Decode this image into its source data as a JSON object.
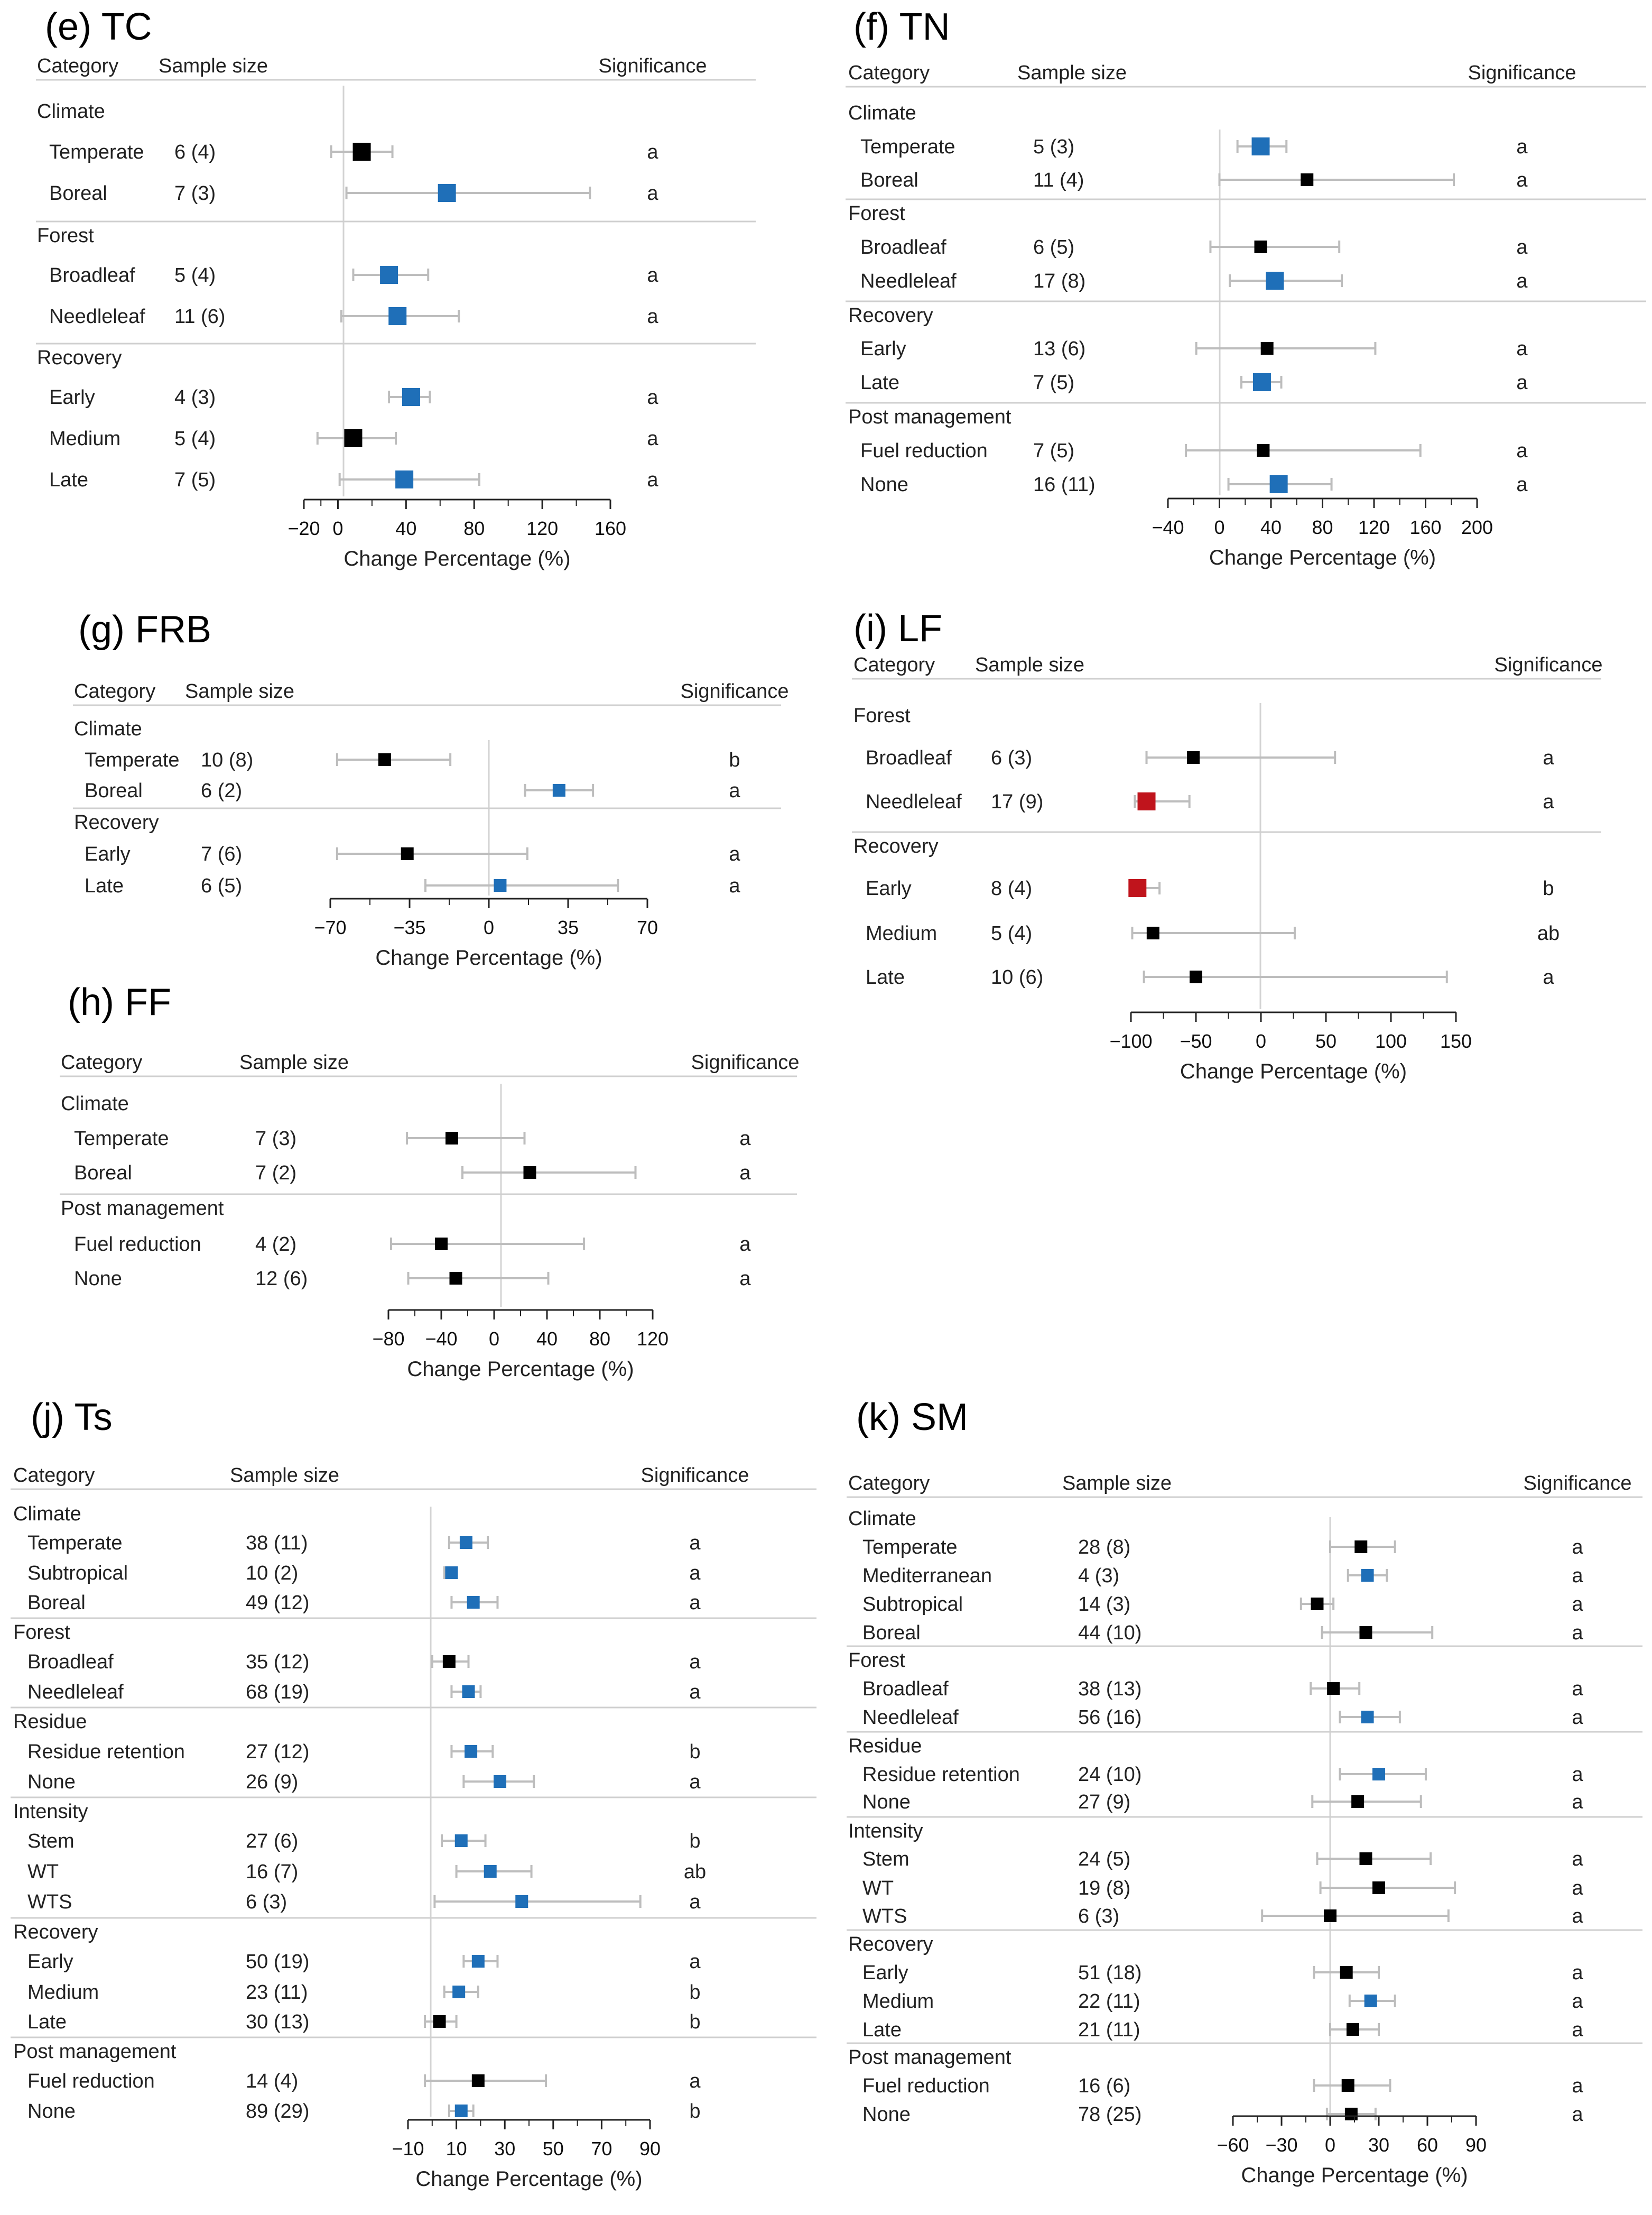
{
  "header_labels": {
    "category": "Category",
    "sample_size": "Sample size",
    "significance": "Significance"
  },
  "colors": {
    "black": "#000000",
    "blue": "#1f6fb8",
    "red": "#c0141c",
    "whisker": "#bdbdbd",
    "ref_line": "#d3d3d3"
  },
  "chart_data": [
    {
      "id": "TC",
      "type": "forest",
      "title": "(e) TC",
      "xlabel": "Change Percentage (%)",
      "xticks": [
        -20,
        0,
        40,
        80,
        120,
        160
      ],
      "xlim": [
        -20,
        160
      ],
      "groups": [
        {
          "name": "Climate",
          "rows": [
            {
              "label": "Temperate",
              "n": "6 (4)",
              "est": 14,
              "lo": -4,
              "hi": 32,
              "color": "black",
              "size": "big",
              "sig": "a"
            },
            {
              "label": "Boreal",
              "n": "7 (3)",
              "est": 64,
              "lo": 5,
              "hi": 148,
              "color": "blue",
              "size": "big",
              "sig": "a"
            }
          ]
        },
        {
          "name": "Forest",
          "rows": [
            {
              "label": "Broadleaf",
              "n": "5 (4)",
              "est": 30,
              "lo": 9,
              "hi": 53,
              "color": "blue",
              "size": "big",
              "sig": "a"
            },
            {
              "label": "Needleleaf",
              "n": "11 (6)",
              "est": 35,
              "lo": 2,
              "hi": 71,
              "color": "blue",
              "size": "big",
              "sig": "a"
            }
          ]
        },
        {
          "name": "Recovery",
          "rows": [
            {
              "label": "Early",
              "n": "4 (3)",
              "est": 43,
              "lo": 30,
              "hi": 54,
              "color": "blue",
              "size": "big",
              "sig": "a"
            },
            {
              "label": "Medium",
              "n": "5 (4)",
              "est": 9,
              "lo": -12,
              "hi": 34,
              "color": "black",
              "size": "big",
              "sig": "a"
            },
            {
              "label": "Late",
              "n": "7 (5)",
              "est": 39,
              "lo": 1,
              "hi": 83,
              "color": "blue",
              "size": "big",
              "sig": "a"
            }
          ]
        }
      ]
    },
    {
      "id": "TN",
      "type": "forest",
      "title": "(f) TN",
      "xlabel": "Change Percentage (%)",
      "xticks": [
        -40,
        0,
        40,
        80,
        120,
        160,
        200
      ],
      "xlim": [
        -40,
        200
      ],
      "groups": [
        {
          "name": "Climate",
          "rows": [
            {
              "label": "Temperate",
              "n": "5 (3)",
              "est": 32,
              "lo": 14,
              "hi": 52,
              "color": "blue",
              "size": "big",
              "sig": "a"
            },
            {
              "label": "Boreal",
              "n": "11 (4)",
              "est": 68,
              "lo": 0,
              "hi": 182,
              "color": "black",
              "size": "small",
              "sig": "a"
            }
          ]
        },
        {
          "name": "Forest",
          "rows": [
            {
              "label": "Broadleaf",
              "n": "6 (5)",
              "est": 32,
              "lo": -7,
              "hi": 93,
              "color": "black",
              "size": "small",
              "sig": "a"
            },
            {
              "label": "Needleleaf",
              "n": "17 (8)",
              "est": 43,
              "lo": 8,
              "hi": 95,
              "color": "blue",
              "size": "big",
              "sig": "a"
            }
          ]
        },
        {
          "name": "Recovery",
          "rows": [
            {
              "label": "Early",
              "n": "13 (6)",
              "est": 37,
              "lo": -18,
              "hi": 121,
              "color": "black",
              "size": "small",
              "sig": "a"
            },
            {
              "label": "Late",
              "n": "7 (5)",
              "est": 33,
              "lo": 17,
              "hi": 48,
              "color": "blue",
              "size": "big",
              "sig": "a"
            }
          ]
        },
        {
          "name": "Post management",
          "rows": [
            {
              "label": "Fuel reduction",
              "n": "7 (5)",
              "est": 34,
              "lo": -26,
              "hi": 156,
              "color": "black",
              "size": "small",
              "sig": "a"
            },
            {
              "label": "None",
              "n": "16 (11)",
              "est": 46,
              "lo": 7,
              "hi": 87,
              "color": "blue",
              "size": "big",
              "sig": "a"
            }
          ]
        }
      ]
    },
    {
      "id": "FRB",
      "type": "forest",
      "title": "(g) FRB",
      "xlabel": "Change Percentage (%)",
      "xticks": [
        -70,
        -35,
        0,
        35,
        70
      ],
      "xlim": [
        -70,
        70
      ],
      "groups": [
        {
          "name": "Climate",
          "rows": [
            {
              "label": "Temperate",
              "n": "10 (8)",
              "est": -46,
              "lo": -67,
              "hi": -17,
              "color": "black",
              "size": "small",
              "sig": "b"
            },
            {
              "label": "Boreal",
              "n": "6 (2)",
              "est": 31,
              "lo": 16,
              "hi": 46,
              "color": "blue",
              "size": "small",
              "sig": "a"
            }
          ]
        },
        {
          "name": "Recovery",
          "rows": [
            {
              "label": "Early",
              "n": "7 (6)",
              "est": -36,
              "lo": -67,
              "hi": 17,
              "color": "black",
              "size": "small",
              "sig": "a"
            },
            {
              "label": "Late",
              "n": "6 (5)",
              "est": 5,
              "lo": -28,
              "hi": 57,
              "color": "blue",
              "size": "small",
              "sig": "a"
            }
          ]
        }
      ]
    },
    {
      "id": "FF",
      "type": "forest",
      "title": "(h) FF",
      "xlabel": "Change Percentage (%)",
      "xticks": [
        -80,
        -40,
        0,
        40,
        80,
        120
      ],
      "xlim": [
        -80,
        120
      ],
      "groups": [
        {
          "name": "Climate",
          "rows": [
            {
              "label": "Temperate",
              "n": "7 (3)",
              "est": -32,
              "lo": -66,
              "hi": 23,
              "color": "black",
              "size": "small",
              "sig": "a"
            },
            {
              "label": "Boreal",
              "n": "7 (2)",
              "est": 27,
              "lo": -24,
              "hi": 107,
              "color": "black",
              "size": "small",
              "sig": "a"
            }
          ]
        },
        {
          "name": "Post management",
          "rows": [
            {
              "label": "Fuel reduction",
              "n": "4 (2)",
              "est": -40,
              "lo": -78,
              "hi": 68,
              "color": "black",
              "size": "small",
              "sig": "a"
            },
            {
              "label": "None",
              "n": "12 (6)",
              "est": -29,
              "lo": -65,
              "hi": 41,
              "color": "black",
              "size": "small",
              "sig": "a"
            }
          ]
        }
      ]
    },
    {
      "id": "LF",
      "type": "forest",
      "title": "(i) LF",
      "xlabel": "Change Percentage (%)",
      "xticks": [
        -100,
        -50,
        0,
        50,
        100,
        150
      ],
      "xlim": [
        -100,
        150
      ],
      "groups": [
        {
          "name": "Forest",
          "rows": [
            {
              "label": "Broadleaf",
              "n": "6 (3)",
              "est": -52,
              "lo": -88,
              "hi": 57,
              "color": "black",
              "size": "small",
              "sig": "a"
            },
            {
              "label": "Needleleaf",
              "n": "17 (9)",
              "est": -88,
              "lo": -97,
              "hi": -55,
              "color": "red",
              "size": "big",
              "sig": "a"
            }
          ]
        },
        {
          "name": "Recovery",
          "rows": [
            {
              "label": "Early",
              "n": "8 (4)",
              "est": -95,
              "lo": -100,
              "hi": -78,
              "color": "red",
              "size": "big",
              "sig": "b"
            },
            {
              "label": "Medium",
              "n": "5 (4)",
              "est": -83,
              "lo": -99,
              "hi": 26,
              "color": "black",
              "size": "small",
              "sig": "ab"
            },
            {
              "label": "Late",
              "n": "10 (6)",
              "est": -50,
              "lo": -90,
              "hi": 143,
              "color": "black",
              "size": "small",
              "sig": "a"
            }
          ]
        }
      ]
    },
    {
      "id": "Ts",
      "type": "forest",
      "title": "(j) Ts",
      "xlabel": "Change Percentage (%)",
      "xticks": [
        -10,
        10,
        30,
        50,
        70,
        90
      ],
      "xlim": [
        -10,
        90
      ],
      "groups": [
        {
          "name": "Climate",
          "rows": [
            {
              "label": "Temperate",
              "n": "38 (11)",
              "est": 14,
              "lo": 7,
              "hi": 23,
              "color": "blue",
              "size": "small",
              "sig": "a"
            },
            {
              "label": "Subtropical",
              "n": "10 (2)",
              "est": 8,
              "lo": 5,
              "hi": 10,
              "color": "blue",
              "size": "small",
              "sig": "a"
            },
            {
              "label": "Boreal",
              "n": "49 (12)",
              "est": 17,
              "lo": 8,
              "hi": 27,
              "color": "blue",
              "size": "small",
              "sig": "a"
            }
          ]
        },
        {
          "name": "Forest",
          "rows": [
            {
              "label": "Broadleaf",
              "n": "35 (12)",
              "est": 7,
              "lo": 0,
              "hi": 15,
              "color": "black",
              "size": "small",
              "sig": "a"
            },
            {
              "label": "Needleleaf",
              "n": "68 (19)",
              "est": 15,
              "lo": 8,
              "hi": 20,
              "color": "blue",
              "size": "small",
              "sig": "a"
            }
          ]
        },
        {
          "name": "Residue",
          "rows": [
            {
              "label": "Residue retention",
              "n": "27 (12)",
              "est": 16,
              "lo": 8,
              "hi": 25,
              "color": "blue",
              "size": "small",
              "sig": "b"
            },
            {
              "label": "None",
              "n": "26 (9)",
              "est": 28,
              "lo": 13,
              "hi": 42,
              "color": "blue",
              "size": "small",
              "sig": "a"
            }
          ]
        },
        {
          "name": "Intensity",
          "rows": [
            {
              "label": "Stem",
              "n": "27 (6)",
              "est": 12,
              "lo": 4,
              "hi": 22,
              "color": "blue",
              "size": "small",
              "sig": "b"
            },
            {
              "label": "WT",
              "n": "16 (7)",
              "est": 24,
              "lo": 10,
              "hi": 41,
              "color": "blue",
              "size": "small",
              "sig": "ab"
            },
            {
              "label": "WTS",
              "n": "6 (3)",
              "est": 37,
              "lo": 1,
              "hi": 86,
              "color": "blue",
              "size": "small",
              "sig": "a"
            }
          ]
        },
        {
          "name": "Recovery",
          "rows": [
            {
              "label": "Early",
              "n": "50 (19)",
              "est": 19,
              "lo": 13,
              "hi": 27,
              "color": "blue",
              "size": "small",
              "sig": "a"
            },
            {
              "label": "Medium",
              "n": "23 (11)",
              "est": 11,
              "lo": 5,
              "hi": 19,
              "color": "blue",
              "size": "small",
              "sig": "b"
            },
            {
              "label": "Late",
              "n": "30 (13)",
              "est": 3,
              "lo": -3,
              "hi": 10,
              "color": "black",
              "size": "small",
              "sig": "b"
            }
          ]
        },
        {
          "name": "Post management",
          "rows": [
            {
              "label": "Fuel reduction",
              "n": "14 (4)",
              "est": 19,
              "lo": -3,
              "hi": 47,
              "color": "black",
              "size": "small",
              "sig": "a"
            },
            {
              "label": "None",
              "n": "89 (29)",
              "est": 12,
              "lo": 7,
              "hi": 17,
              "color": "blue",
              "size": "small",
              "sig": "b"
            }
          ]
        }
      ]
    },
    {
      "id": "SM",
      "type": "forest",
      "title": "(k) SM",
      "xlabel": "Change Percentage (%)",
      "xticks": [
        -60,
        -30,
        0,
        30,
        60,
        90
      ],
      "xlim": [
        -60,
        90
      ],
      "groups": [
        {
          "name": "Climate",
          "rows": [
            {
              "label": "Temperate",
              "n": "28 (8)",
              "est": 19,
              "lo": 0,
              "hi": 40,
              "color": "black",
              "size": "small",
              "sig": "a"
            },
            {
              "label": "Mediterranean",
              "n": "4 (3)",
              "est": 23,
              "lo": 11,
              "hi": 35,
              "color": "blue",
              "size": "small",
              "sig": "a"
            },
            {
              "label": "Subtropical",
              "n": "14 (3)",
              "est": -8,
              "lo": -18,
              "hi": 2,
              "color": "black",
              "size": "small",
              "sig": "a"
            },
            {
              "label": "Boreal",
              "n": "44 (10)",
              "est": 22,
              "lo": -5,
              "hi": 63,
              "color": "black",
              "size": "small",
              "sig": "a"
            }
          ]
        },
        {
          "name": "Forest",
          "rows": [
            {
              "label": "Broadleaf",
              "n": "38 (13)",
              "est": 2,
              "lo": -12,
              "hi": 18,
              "color": "black",
              "size": "small",
              "sig": "a"
            },
            {
              "label": "Needleleaf",
              "n": "56 (16)",
              "est": 23,
              "lo": 6,
              "hi": 43,
              "color": "blue",
              "size": "small",
              "sig": "a"
            }
          ]
        },
        {
          "name": "Residue",
          "rows": [
            {
              "label": "Residue retention",
              "n": "24 (10)",
              "est": 30,
              "lo": 6,
              "hi": 59,
              "color": "blue",
              "size": "small",
              "sig": "a"
            },
            {
              "label": "None",
              "n": "27 (9)",
              "est": 17,
              "lo": -11,
              "hi": 56,
              "color": "black",
              "size": "small",
              "sig": "a"
            }
          ]
        },
        {
          "name": "Intensity",
          "rows": [
            {
              "label": "Stem",
              "n": "24 (5)",
              "est": 22,
              "lo": -8,
              "hi": 62,
              "color": "black",
              "size": "small",
              "sig": "a"
            },
            {
              "label": "WT",
              "n": "19 (8)",
              "est": 30,
              "lo": -6,
              "hi": 77,
              "color": "black",
              "size": "small",
              "sig": "a"
            },
            {
              "label": "WTS",
              "n": "6 (3)",
              "est": 0,
              "lo": -42,
              "hi": 73,
              "color": "black",
              "size": "small",
              "sig": "a"
            }
          ]
        },
        {
          "name": "Recovery",
          "rows": [
            {
              "label": "Early",
              "n": "51 (18)",
              "est": 10,
              "lo": -10,
              "hi": 30,
              "color": "black",
              "size": "small",
              "sig": "a"
            },
            {
              "label": "Medium",
              "n": "22 (11)",
              "est": 25,
              "lo": 12,
              "hi": 40,
              "color": "blue",
              "size": "small",
              "sig": "a"
            },
            {
              "label": "Late",
              "n": "21 (11)",
              "est": 14,
              "lo": 0,
              "hi": 30,
              "color": "black",
              "size": "small",
              "sig": "a"
            }
          ]
        },
        {
          "name": "Post management",
          "rows": [
            {
              "label": "Fuel reduction",
              "n": "16 (6)",
              "est": 11,
              "lo": -10,
              "hi": 37,
              "color": "black",
              "size": "small",
              "sig": "a"
            },
            {
              "label": "None",
              "n": "78 (25)",
              "est": 13,
              "lo": -2,
              "hi": 28,
              "color": "black",
              "size": "small",
              "sig": "a"
            }
          ]
        }
      ]
    }
  ]
}
